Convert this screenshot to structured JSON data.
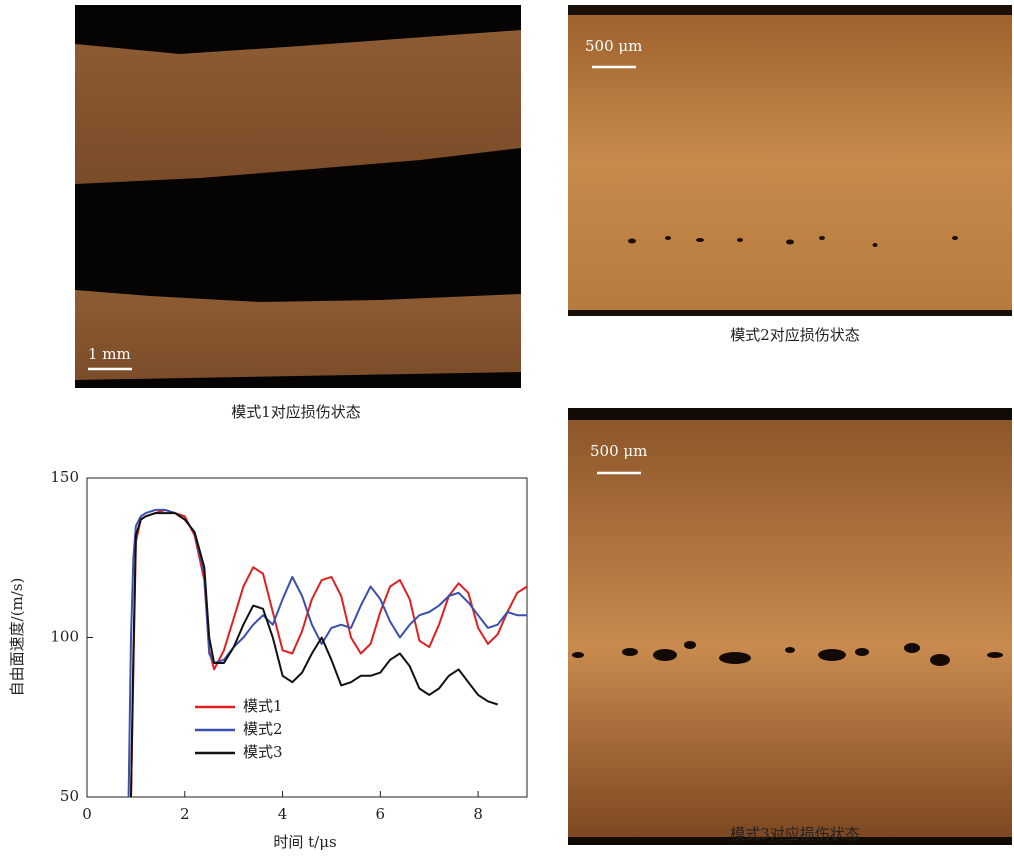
{
  "panels": [
    {
      "caption": "模式1对应损伤状态",
      "scale_bar": "1 mm"
    },
    {
      "caption": "模式2对应损伤状态",
      "scale_bar": "500 μm"
    },
    {
      "caption": "模式3对应损伤状态",
      "scale_bar": "500 μm"
    }
  ],
  "chart_data": {
    "type": "line",
    "xlabel": "时间 t/μs",
    "ylabel": "自由面速度/(m/s)",
    "xlim": [
      0,
      9
    ],
    "ylim": [
      50,
      150
    ],
    "xticks": [
      0,
      2,
      4,
      6,
      8
    ],
    "yticks": [
      50,
      100,
      150
    ],
    "legend": "lower left",
    "x": [
      0.85,
      0.9,
      0.95,
      1.0,
      1.1,
      1.2,
      1.4,
      1.6,
      1.8,
      2.0,
      2.2,
      2.4,
      2.5,
      2.6,
      2.8,
      3.0,
      3.2,
      3.4,
      3.6,
      3.8,
      4.0,
      4.2,
      4.4,
      4.6,
      4.8,
      5.0,
      5.2,
      5.4,
      5.6,
      5.8,
      6.0,
      6.2,
      6.4,
      6.6,
      6.8,
      7.0,
      7.2,
      7.4,
      7.6,
      7.8,
      8.0,
      8.2,
      8.4,
      8.6,
      8.8,
      9.0
    ],
    "series": [
      {
        "name": "模式1",
        "color": "#e02020",
        "values": [
          null,
          50,
          90,
          130,
          137,
          138,
          139,
          140,
          139,
          138,
          132,
          118,
          96,
          90,
          96,
          106,
          116,
          122,
          120,
          108,
          96,
          95,
          102,
          112,
          118,
          119,
          113,
          100,
          95,
          98,
          108,
          116,
          118,
          112,
          99,
          97,
          104,
          113,
          117,
          114,
          103,
          98,
          101,
          108,
          114,
          116
        ]
      },
      {
        "name": "模式2",
        "color": "#3a4fb0",
        "values": [
          50,
          100,
          125,
          135,
          138,
          139,
          140,
          140,
          139,
          137,
          133,
          120,
          95,
          92,
          93,
          97,
          100,
          104,
          107,
          104,
          112,
          119,
          113,
          104,
          98,
          103,
          104,
          103,
          110,
          116,
          112,
          105,
          100,
          104,
          107,
          108,
          110,
          113,
          114,
          111,
          107,
          103,
          104,
          108,
          107,
          107
        ]
      },
      {
        "name": "模式3",
        "color": "#111111",
        "values": [
          null,
          50,
          95,
          132,
          137,
          138,
          139,
          139,
          139,
          137,
          133,
          122,
          100,
          92,
          92,
          97,
          104,
          110,
          109,
          100,
          88,
          86,
          89,
          95,
          100,
          93,
          85,
          86,
          88,
          88,
          89,
          93,
          95,
          91,
          84,
          82,
          84,
          88,
          90,
          86,
          82,
          80,
          79,
          null,
          null,
          null
        ]
      }
    ]
  }
}
